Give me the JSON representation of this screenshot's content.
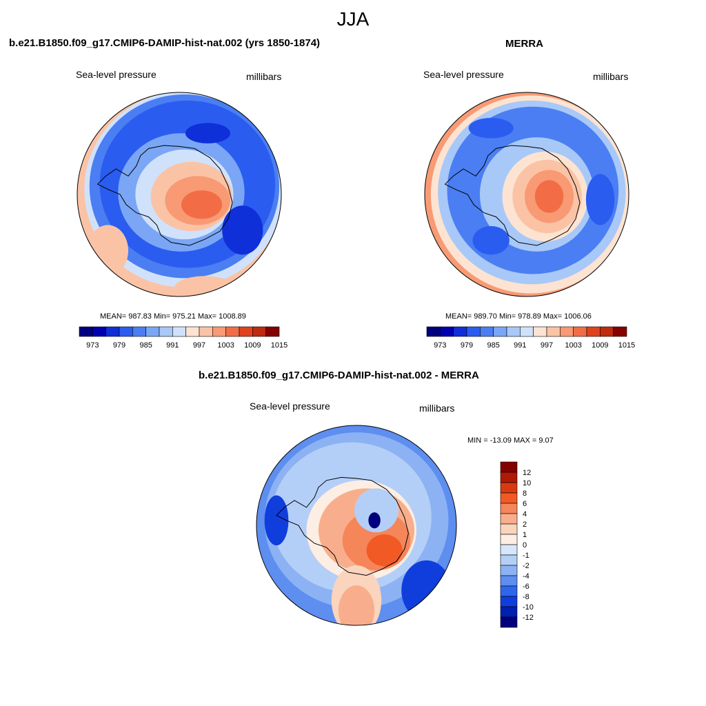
{
  "page_title": "JJA",
  "panels": [
    {
      "title": "b.e21.B1850.f09_g17.CMIP6-DAMIP-hist-nat.002 (yrs 1850-1874)",
      "left_label": "Sea-level pressure",
      "right_label": "millibars",
      "stats": "MEAN= 987.83  Min= 975.21  Max= 1008.89",
      "colorbar_ticks": [
        "973",
        "979",
        "985",
        "991",
        "997",
        "1003",
        "1009",
        "1015"
      ]
    },
    {
      "title": "MERRA",
      "left_label": "Sea-level pressure",
      "right_label": "millibars",
      "stats": "MEAN= 989.70  Min= 978.89  Max= 1006.06",
      "colorbar_ticks": [
        "973",
        "979",
        "985",
        "991",
        "997",
        "1003",
        "1009",
        "1015"
      ]
    },
    {
      "title": "b.e21.B1850.f09_g17.CMIP6-DAMIP-hist-nat.002 - MERRA",
      "left_label": "Sea-level pressure",
      "right_label": "millibars",
      "stats": "MIN = -13.09 MAX =   9.07",
      "colorbar_ticks": [
        "12",
        "10",
        "8",
        "6",
        "4",
        "2",
        "1",
        "0",
        "-1",
        "-2",
        "-4",
        "-6",
        "-8",
        "-10",
        "-12"
      ]
    }
  ],
  "palette": [
    "#00007f",
    "#0000b0",
    "#0f2fd8",
    "#2b5cf0",
    "#4a7ef2",
    "#7aa6f5",
    "#a8c8f8",
    "#d0e2fb",
    "#fde3d2",
    "#fbc3a5",
    "#f89a74",
    "#f26d46",
    "#e0421f",
    "#c02a0e",
    "#850000"
  ],
  "diff_palette": [
    "#850000",
    "#b01a05",
    "#d73a12",
    "#f25a25",
    "#f5865a",
    "#f8ae8c",
    "#fbd4bd",
    "#fdeee3",
    "#d6e6fb",
    "#b4cff7",
    "#8cb2f3",
    "#5d8ef0",
    "#2f66ec",
    "#0f3edc",
    "#0020b0",
    "#00007f"
  ],
  "chart_data": [
    {
      "type": "heatmap",
      "title": "b.e21.B1850.f09_g17.CMIP6-DAMIP-hist-nat.002 (yrs 1850-1874)",
      "variable": "Sea-level pressure",
      "units": "millibars",
      "season": "JJA",
      "mean": 987.83,
      "min": 975.21,
      "max": 1008.89,
      "contour_levels": [
        973,
        976,
        979,
        982,
        985,
        988,
        991,
        994,
        997,
        1000,
        1003,
        1006,
        1009,
        1012,
        1015
      ]
    },
    {
      "type": "heatmap",
      "title": "MERRA",
      "variable": "Sea-level pressure",
      "units": "millibars",
      "season": "JJA",
      "mean": 989.7,
      "min": 978.89,
      "max": 1006.06,
      "contour_levels": [
        973,
        976,
        979,
        982,
        985,
        988,
        991,
        994,
        997,
        1000,
        1003,
        1006,
        1009,
        1012,
        1015
      ]
    },
    {
      "type": "heatmap",
      "title": "b.e21.B1850.f09_g17.CMIP6-DAMIP-hist-nat.002 - MERRA",
      "variable": "Sea-level pressure",
      "units": "millibars",
      "season": "JJA",
      "min": -13.09,
      "max": 9.07,
      "contour_levels": [
        -12,
        -10,
        -8,
        -6,
        -4,
        -2,
        -1,
        0,
        1,
        2,
        4,
        6,
        8,
        10,
        12
      ]
    }
  ]
}
